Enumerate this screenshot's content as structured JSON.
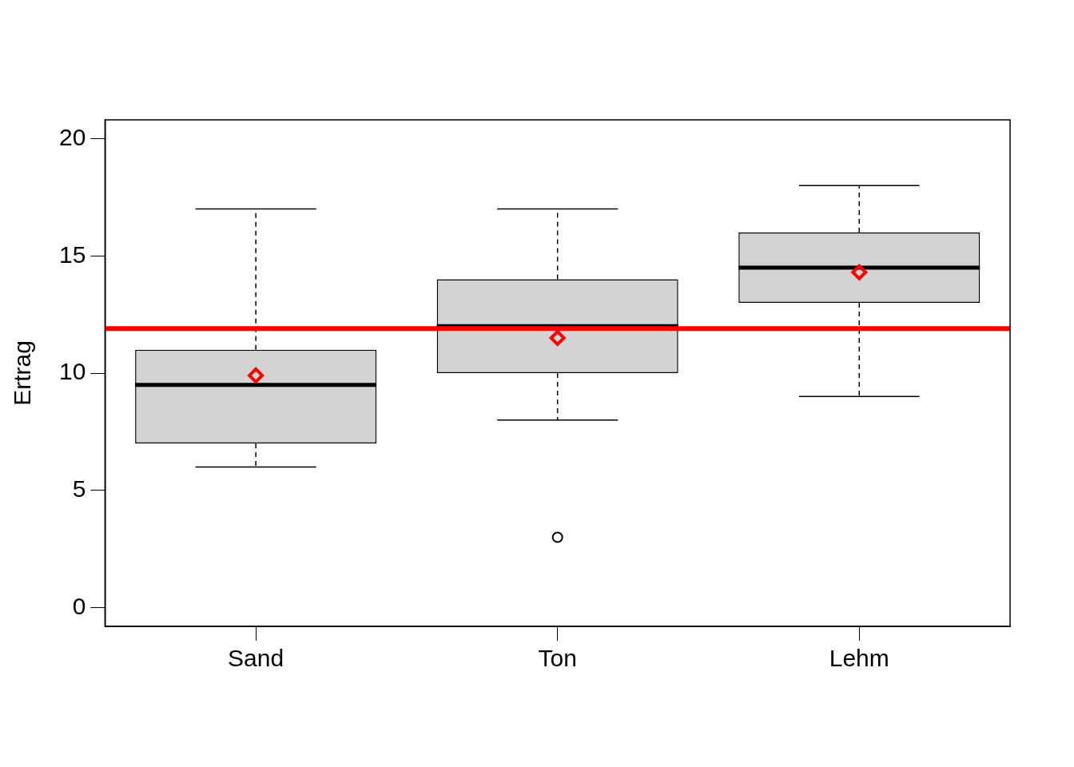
{
  "chart_data": {
    "type": "boxplot",
    "y_label": "Ertrag",
    "categories": [
      "Sand",
      "Ton",
      "Lehm"
    ],
    "color": "#d3d3d3",
    "boxes": [
      {
        "min": 6,
        "q1": 7,
        "median": 9.5,
        "q3": 11,
        "max": 17,
        "outliers": []
      },
      {
        "min": 8,
        "q1": 10,
        "median": 12,
        "q3": 14,
        "max": 17,
        "outliers": [
          3
        ]
      },
      {
        "min": 9,
        "q1": 13,
        "median": 14.5,
        "q3": 16,
        "max": 18,
        "outliers": []
      }
    ],
    "means": {
      "values": [
        9.9,
        11.5,
        14.3
      ],
      "color": "#ff0000",
      "marker": "diamond"
    },
    "reference_line": {
      "value": 11.9,
      "color": "#ff0000"
    },
    "ylim": [
      -0.8,
      20.8
    ],
    "yticks": [
      0,
      5,
      10,
      15,
      20
    ],
    "grid": false
  }
}
